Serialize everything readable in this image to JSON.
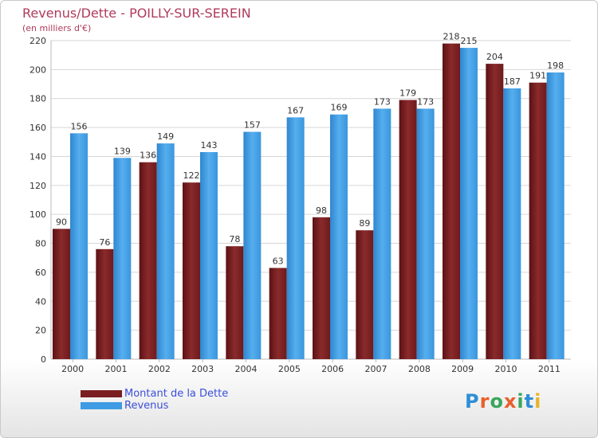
{
  "header": {
    "title": "Revenus/Dette - POILLY-SUR-SEREIN",
    "subtitle": "(en milliers d'€)"
  },
  "chart_data": {
    "type": "bar",
    "categories": [
      "2000",
      "2001",
      "2002",
      "2003",
      "2004",
      "2005",
      "2006",
      "2007",
      "2008",
      "2009",
      "2010",
      "2011"
    ],
    "series": [
      {
        "name": "Montant de la Dette",
        "values": [
          90,
          76,
          136,
          122,
          78,
          63,
          98,
          89,
          179,
          218,
          204,
          191
        ],
        "color": "#7a1e21"
      },
      {
        "name": "Revenus",
        "values": [
          156,
          139,
          149,
          143,
          157,
          167,
          169,
          173,
          173,
          215,
          187,
          198
        ],
        "color": "#3f9be3"
      }
    ],
    "ylim": [
      0,
      220
    ],
    "yticks": [
      0,
      20,
      40,
      60,
      80,
      100,
      120,
      140,
      160,
      180,
      200,
      220
    ],
    "grid": true,
    "legend_position": "bottom-left"
  },
  "legend": {
    "items": [
      {
        "label": "Montant de la Dette",
        "color": "#7a1e21"
      },
      {
        "label": "Revenus",
        "color": "#3f9be3"
      }
    ]
  },
  "logo": {
    "letters": [
      "P",
      "r",
      "o",
      "x",
      "i",
      "t",
      "i"
    ],
    "colors": [
      "#2e8fd6",
      "#e8602a",
      "#3aa65a",
      "#e8602a",
      "#3aa65a",
      "#2e8fd6",
      "#e8b42a"
    ]
  }
}
